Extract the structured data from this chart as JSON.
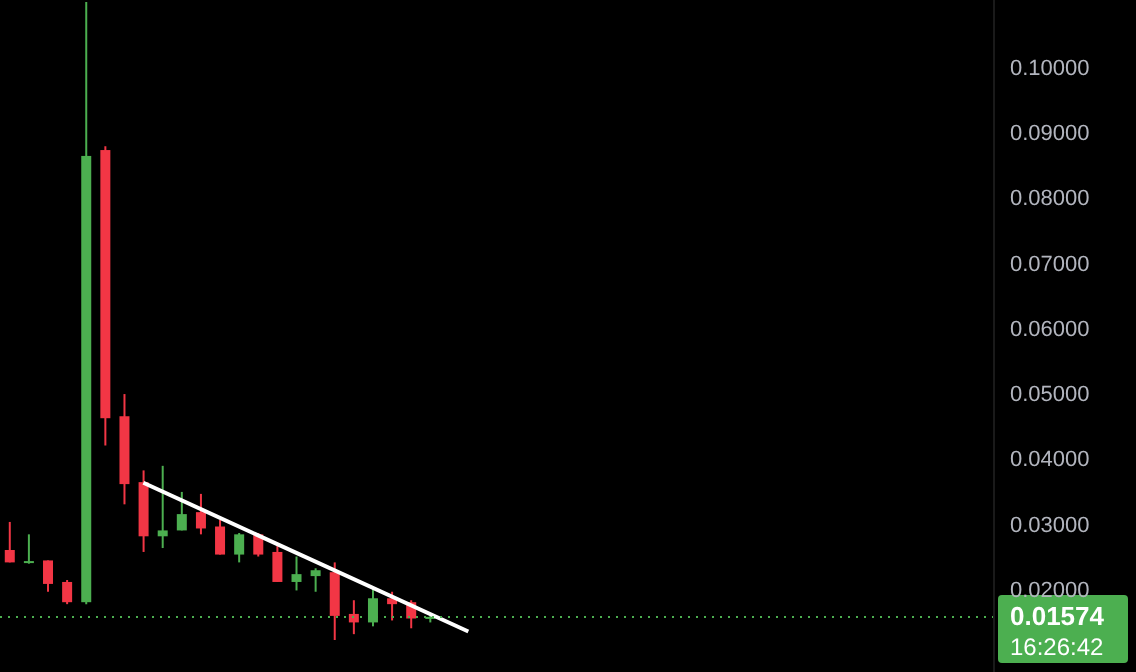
{
  "chart_data": {
    "type": "candlestick",
    "categories": [
      null,
      null,
      null,
      null,
      null,
      null,
      null,
      null,
      null,
      null,
      null,
      null,
      null,
      null,
      null,
      null,
      null,
      null,
      null,
      null,
      null,
      null,
      null,
      null,
      null,
      null,
      null,
      null,
      null,
      null,
      null,
      null,
      null,
      null,
      null,
      null,
      null,
      null,
      null,
      null,
      null,
      null,
      null,
      null,
      null,
      null,
      null,
      null,
      null,
      null,
      null,
      null
    ],
    "ohlc": [
      [
        0.026,
        0.0303,
        0.0241,
        0.0241
      ],
      [
        0.0242,
        0.0284,
        0.0239,
        0.0243
      ],
      [
        0.0244,
        0.0244,
        0.0196,
        0.0208
      ],
      [
        0.0211,
        0.0214,
        0.0177,
        0.018
      ],
      [
        0.018,
        0.11,
        0.0177,
        0.0864
      ],
      [
        0.0873,
        0.0879,
        0.042,
        0.0462
      ],
      [
        0.0465,
        0.0499,
        0.033,
        0.0361
      ],
      [
        0.0364,
        0.0382,
        0.0257,
        0.0281
      ],
      [
        0.0281,
        0.0389,
        0.0263,
        0.029
      ],
      [
        0.029,
        0.0349,
        0.029,
        0.0315
      ],
      [
        0.0318,
        0.0346,
        0.0284,
        0.0293
      ],
      [
        0.0296,
        0.0306,
        0.0253,
        0.0253
      ],
      [
        0.0253,
        0.0286,
        0.0241,
        0.0284
      ],
      [
        0.0284,
        0.0286,
        0.025,
        0.0253
      ],
      [
        0.0257,
        0.0266,
        0.0211,
        0.0211
      ],
      [
        0.0211,
        0.025,
        0.0198,
        0.0223
      ],
      [
        0.022,
        0.0232,
        0.0196,
        0.0229
      ],
      [
        0.0226,
        0.0241,
        0.0122,
        0.0159
      ],
      [
        0.0162,
        0.0183,
        0.0131,
        0.0149
      ],
      [
        0.0149,
        0.0201,
        0.0143,
        0.0186
      ],
      [
        0.0186,
        0.0196,
        0.0152,
        0.0177
      ],
      [
        0.018,
        0.0183,
        0.014,
        0.0155
      ],
      [
        0.0155,
        0.0159,
        0.0149,
        0.01574
      ],
      null,
      null,
      null,
      null,
      null,
      null,
      null,
      null,
      null,
      null,
      null,
      null,
      null,
      null,
      null,
      null,
      null,
      null,
      null,
      null,
      null,
      null,
      null,
      null,
      null,
      null,
      null,
      null,
      null
    ],
    "colors": [
      "#f23645",
      "#4caf50",
      "#f23645",
      "#f23645",
      "#4caf50",
      "#f23645",
      "#f23645",
      "#f23645",
      "#4caf50",
      "#4caf50",
      "#f23645",
      "#f23645",
      "#4caf50",
      "#f23645",
      "#f23645",
      "#4caf50",
      "#4caf50",
      "#f23645",
      "#f23645",
      "#4caf50",
      "#f23645",
      "#f23645",
      "#4caf50",
      null,
      null,
      null,
      null,
      null,
      null,
      null,
      null,
      null,
      null,
      null,
      null,
      null,
      null,
      null,
      null,
      null,
      null,
      null,
      null,
      null,
      null,
      null,
      null,
      null,
      null,
      null,
      null,
      null
    ],
    "series": [
      {
        "type": "line",
        "color": "#ffffff",
        "values": [
          null,
          null,
          null,
          null,
          null,
          null,
          null,
          0.0363,
          null,
          null,
          null,
          null,
          null,
          null,
          null,
          null,
          null,
          null,
          null,
          null,
          null,
          null,
          null,
          null,
          0.0135,
          null,
          null,
          null,
          null,
          null,
          null,
          null,
          null,
          null,
          null,
          null,
          null,
          null,
          null,
          null,
          null,
          null,
          null,
          null,
          null,
          null,
          null,
          null,
          null,
          null,
          null,
          null
        ]
      }
    ],
    "ylim": [
      0.0073,
      0.1103
    ],
    "yticks": [
      {
        "value": 0.02,
        "label": "0.02000"
      },
      {
        "value": 0.03,
        "label": "0.03000"
      },
      {
        "value": 0.04,
        "label": "0.04000"
      },
      {
        "value": 0.05,
        "label": "0.05000"
      },
      {
        "value": 0.06,
        "label": "0.06000"
      },
      {
        "value": 0.07,
        "label": "0.07000"
      },
      {
        "value": 0.08,
        "label": "0.08000"
      },
      {
        "value": 0.09,
        "label": "0.09000"
      },
      {
        "value": 0.1,
        "label": "0.10000"
      }
    ],
    "ref_lines": [
      {
        "axis": "y",
        "value": 0.01574,
        "label": "0.01574",
        "color": "#4caf50",
        "line_style": "dotted"
      }
    ],
    "annotations": [
      "16:26:42"
    ],
    "tick_labels": "y",
    "grid": false
  }
}
